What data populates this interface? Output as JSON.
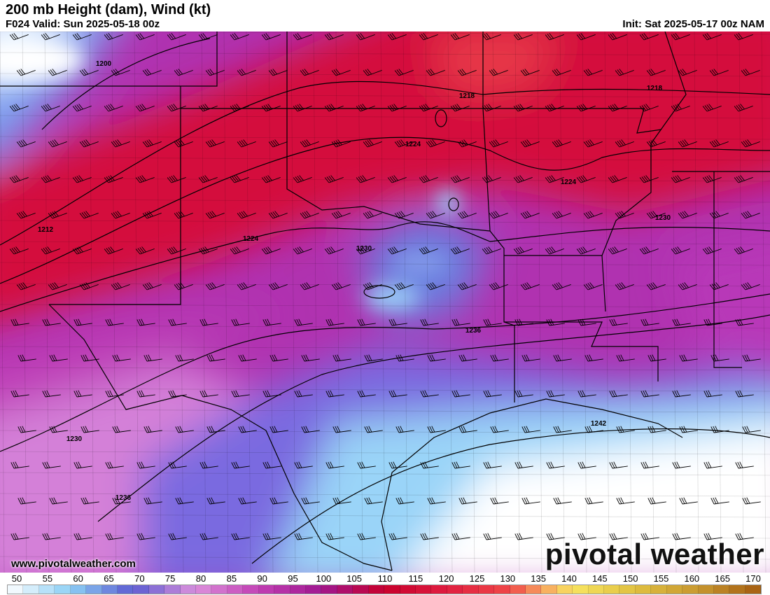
{
  "header": {
    "title": "200 mb Height (dam), Wind (kt)",
    "valid": "F024 Valid: Sun 2025-05-18 00z",
    "init": "Init: Sat 2025-05-17 00z NAM"
  },
  "map": {
    "field": "wind speed shaded, height contours, wind barbs",
    "contour_labels": [
      "1200",
      "1212",
      "1218",
      "1218",
      "1224",
      "1224",
      "1224",
      "1230",
      "1230",
      "1230",
      "1236",
      "1236",
      "1242"
    ]
  },
  "footer": {
    "url": "www.pivotalweather.com",
    "logo": "pivotal weather"
  },
  "colorbar": {
    "labels": [
      "50",
      "55",
      "60",
      "65",
      "70",
      "75",
      "80",
      "85",
      "90",
      "95",
      "100",
      "105",
      "110",
      "115",
      "120",
      "125",
      "130",
      "135",
      "140",
      "145",
      "150",
      "155",
      "160",
      "165",
      "170"
    ],
    "stops": [
      {
        "v": 50,
        "c": "#ffffff"
      },
      {
        "v": 60,
        "c": "#8ccff5"
      },
      {
        "v": 70,
        "c": "#5c5cd2"
      },
      {
        "v": 80,
        "c": "#dc90dc"
      },
      {
        "v": 90,
        "c": "#c240b4"
      },
      {
        "v": 100,
        "c": "#a01890"
      },
      {
        "v": 110,
        "c": "#c8002c"
      },
      {
        "v": 120,
        "c": "#e01e40"
      },
      {
        "v": 130,
        "c": "#f04848"
      },
      {
        "v": 135,
        "c": "#f8a060"
      },
      {
        "v": 140,
        "c": "#f8e460"
      },
      {
        "v": 150,
        "c": "#e0c040"
      },
      {
        "v": 160,
        "c": "#c89830"
      },
      {
        "v": 170,
        "c": "#a45c10"
      }
    ]
  }
}
